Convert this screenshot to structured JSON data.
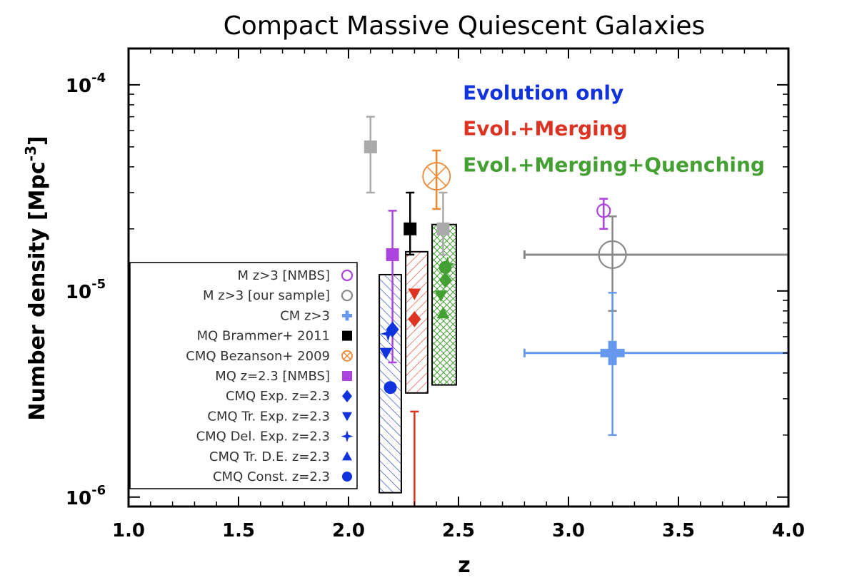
{
  "chart_data": {
    "type": "scatter",
    "title": "Compact Massive Quiescent Galaxies",
    "xlabel": "z",
    "ylabel": "Number density [Mpc",
    "ylabel_sup": "-3",
    "ylabel_close": "]",
    "xlim": [
      1.0,
      4.0
    ],
    "ylim": [
      9e-07,
      0.00015
    ],
    "y_scale": "log",
    "xticks": [
      {
        "value": 1.0,
        "label": "1.0"
      },
      {
        "value": 1.5,
        "label": "1.5"
      },
      {
        "value": 2.0,
        "label": "2.0"
      },
      {
        "value": 2.5,
        "label": "2.5"
      },
      {
        "value": 3.0,
        "label": "3.0"
      },
      {
        "value": 3.5,
        "label": "3.5"
      },
      {
        "value": 4.0,
        "label": "4.0"
      }
    ],
    "yticks": [
      {
        "value": 1e-06,
        "base": "10",
        "exp": "-6"
      },
      {
        "value": 1e-05,
        "base": "10",
        "exp": "-5"
      },
      {
        "value": 0.0001,
        "base": "10",
        "exp": "-4"
      }
    ],
    "annotations": [
      {
        "text": "Evolution only",
        "color": "#1133dd",
        "x": 2.52,
        "y": 8.5e-05
      },
      {
        "text": "Evol.+Merging",
        "color": "#dd3322",
        "x": 2.52,
        "y": 5.7e-05
      },
      {
        "text": "Evol.+Merging+Quenching",
        "color": "#44a033",
        "x": 2.52,
        "y": 3.8e-05
      }
    ],
    "bands": [
      {
        "name": "Evolution only",
        "x0": 2.14,
        "x1": 2.24,
        "ylow": 1.05e-06,
        "yhigh": 1.2e-05,
        "color": "#1133aa",
        "pattern": "diag"
      },
      {
        "name": "Evol.+Merging",
        "x0": 2.26,
        "x1": 2.36,
        "ylow": 3.2e-06,
        "yhigh": 1.55e-05,
        "color": "#dd3322",
        "pattern": "diag"
      },
      {
        "name": "Evol.+Merging+Quenching",
        "x0": 2.38,
        "x1": 2.49,
        "ylow": 3.5e-06,
        "yhigh": 2.1e-05,
        "color": "#44a033",
        "pattern": "cross"
      }
    ],
    "series": [
      {
        "name": "M z>3 [NMBS]",
        "marker": "circle-open",
        "color": "#aa44dd",
        "points": [
          {
            "x": 3.16,
            "y": 2.45e-05,
            "ylo": 2e-05,
            "yhi": 2.8e-05
          }
        ]
      },
      {
        "name": "M z>3 [our sample]",
        "marker": "circle-open",
        "color": "#888888",
        "points": [
          {
            "x": 3.2,
            "y": 1.5e-05,
            "xlo": 2.8,
            "xhi": 4.0,
            "ylo": 8e-06,
            "yhi": 2.3e-05
          }
        ]
      },
      {
        "name": "CM z>3",
        "marker": "plus",
        "color": "#6699ee",
        "points": [
          {
            "x": 3.2,
            "y": 5e-06,
            "xlo": 2.8,
            "xhi": 4.0,
            "ylo": 2e-06,
            "yhi": 9.8e-06
          }
        ]
      },
      {
        "name": "MQ Brammer+ 2011",
        "marker": "square",
        "color": "#000000",
        "points": [
          {
            "x": 2.28,
            "y": 2e-05,
            "ylo": 1.5e-05,
            "yhi": 3e-05
          }
        ]
      },
      {
        "name": "CMQ Bezanson+ 2009",
        "marker": "circle-x",
        "color": "#ee8833",
        "points": [
          {
            "x": 2.4,
            "y": 3.6e-05,
            "ylo": 2.5e-05,
            "yhi": 4.8e-05
          }
        ]
      },
      {
        "name": "MQ z=2.3 [NMBS]",
        "marker": "square",
        "color": "#aa44dd",
        "points": [
          {
            "x": 2.2,
            "y": 1.5e-05,
            "ylo": 4.5e-06,
            "yhi": 2.45e-05
          }
        ]
      },
      {
        "name": "CMQ Exp. z=2.3",
        "marker": "diamond",
        "color": "#1133dd",
        "points": [
          {
            "x": 2.2,
            "y": 6.5e-06
          },
          {
            "x": 2.3,
            "y": 7.3e-06,
            "color": "#dd3322"
          },
          {
            "x": 2.44,
            "y": 1.13e-05,
            "color": "#44a033"
          }
        ]
      },
      {
        "name": "CMQ Tr. Exp. z=2.3",
        "marker": "triangle-down",
        "color": "#1133dd",
        "points": [
          {
            "x": 2.17,
            "y": 5e-06
          },
          {
            "x": 2.3,
            "y": 9.7e-06,
            "color": "#dd3322"
          },
          {
            "x": 2.42,
            "y": 9.5e-06,
            "color": "#44a033"
          }
        ]
      },
      {
        "name": "CMQ Del. Exp. z=2.3",
        "marker": "star",
        "color": "#1133dd",
        "points": [
          {
            "x": 2.18,
            "y": 6.2e-06
          },
          {
            "x": 2.45,
            "y": 1.35e-05,
            "color": "#44a033"
          }
        ]
      },
      {
        "name": "CMQ Tr. D.E. z=2.3",
        "marker": "triangle-up",
        "color": "#1133dd",
        "points": [
          {
            "x": 2.43,
            "y": 7.8e-06,
            "color": "#44a033"
          }
        ]
      },
      {
        "name": "CMQ Const. z=2.3",
        "marker": "circle",
        "color": "#1133dd",
        "points": [
          {
            "x": 2.19,
            "y": 3.4e-06
          },
          {
            "x": 2.44,
            "y": 1.3e-05,
            "color": "#44a033"
          }
        ]
      },
      {
        "name": "",
        "marker": "square",
        "color": "#aaaaaa",
        "points": [
          {
            "x": 2.1,
            "y": 5e-05,
            "ylo": 3e-05,
            "yhi": 7e-05
          },
          {
            "x": 2.43,
            "y": 2e-05,
            "ylo": 1.5e-05,
            "yhi": 3e-05
          }
        ]
      },
      {
        "name": "",
        "marker": "none",
        "color": "#dd3322",
        "points": [
          {
            "x": 2.3,
            "y": 8e-07,
            "ylo": 8e-07,
            "yhi": 2.6e-06
          }
        ]
      }
    ],
    "legend": {
      "placement": "lower-left",
      "entries": [
        {
          "label": "M z>3 [NMBS]",
          "marker": "circle-open",
          "color": "#aa44dd"
        },
        {
          "label": "M z>3 [our sample]",
          "marker": "circle-open",
          "color": "#888888"
        },
        {
          "label": "CM z>3",
          "marker": "plus",
          "color": "#6699ee"
        },
        {
          "label": "MQ Brammer+ 2011",
          "marker": "square",
          "color": "#000000"
        },
        {
          "label": "CMQ Bezanson+ 2009",
          "marker": "circle-x",
          "color": "#ee8833"
        },
        {
          "label": "MQ z=2.3 [NMBS]",
          "marker": "square",
          "color": "#aa44dd"
        },
        {
          "label": "CMQ Exp. z=2.3",
          "marker": "diamond",
          "color": "#1133dd"
        },
        {
          "label": "CMQ Tr. Exp. z=2.3",
          "marker": "triangle-down",
          "color": "#1133dd"
        },
        {
          "label": "CMQ Del. Exp. z=2.3",
          "marker": "star",
          "color": "#1133dd"
        },
        {
          "label": "CMQ Tr. D.E. z=2.3",
          "marker": "triangle-up",
          "color": "#1133dd"
        },
        {
          "label": "CMQ Const. z=2.3",
          "marker": "circle",
          "color": "#1133dd"
        }
      ]
    }
  }
}
